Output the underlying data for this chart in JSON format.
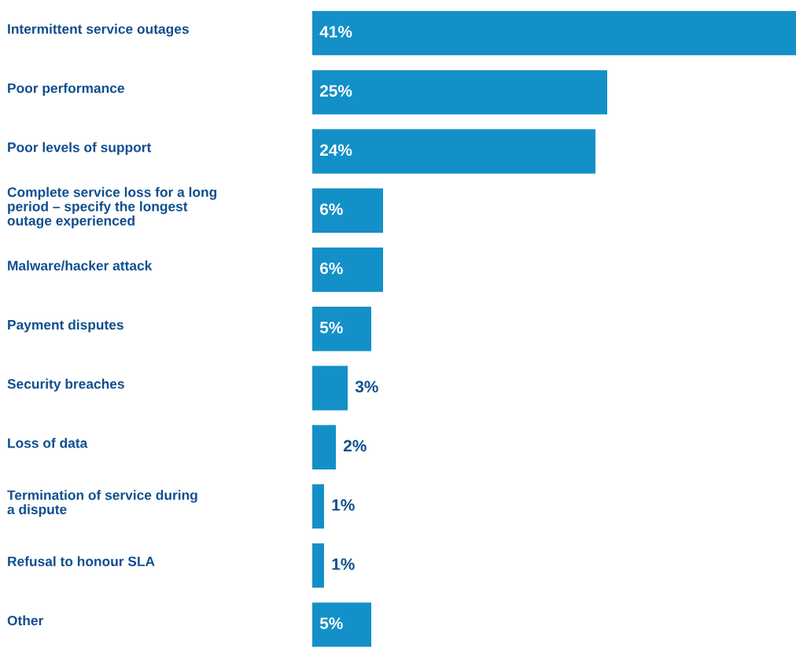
{
  "chart_data": {
    "type": "bar",
    "orientation": "horizontal",
    "categories": [
      "Intermittent service outages",
      "Poor performance",
      "Poor levels of support",
      "Complete service loss for a long\nperiod – specify the longest\noutage experienced",
      "Malware/hacker attack",
      "Payment disputes",
      "Security breaches",
      "Loss of data",
      "Termination of service during\na dispute",
      "Refusal to honour SLA",
      "Other"
    ],
    "values": [
      41,
      25,
      24,
      6,
      6,
      5,
      3,
      2,
      1,
      1,
      5
    ],
    "value_labels": [
      "41%",
      "25%",
      "24%",
      "6%",
      "6%",
      "5%",
      "3%",
      "2%",
      "1%",
      "1%",
      "5%"
    ],
    "color": "#1490c8",
    "xlim": [
      0,
      41
    ],
    "tick_labels": "y"
  }
}
